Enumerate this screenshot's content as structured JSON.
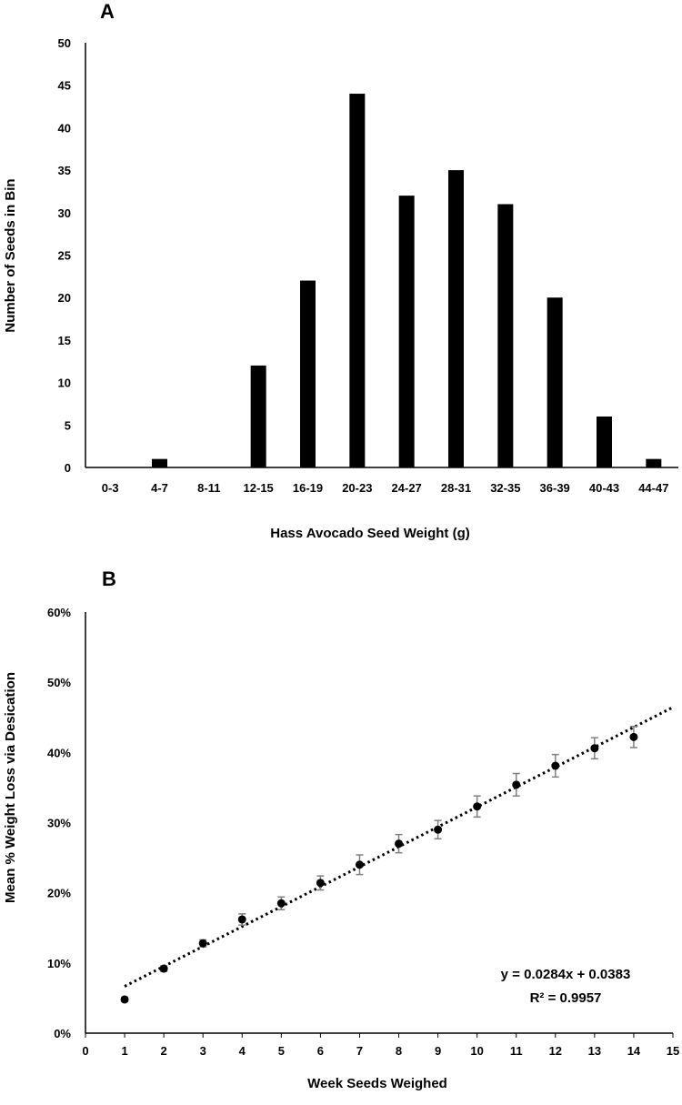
{
  "chart_data": [
    {
      "panel_label": "A",
      "type": "bar",
      "title": "",
      "xlabel": "Hass Avocado Seed Weight (g)",
      "ylabel": "Number of Seeds in Bin",
      "categories": [
        "0-3",
        "4-7",
        "8-11",
        "12-15",
        "16-19",
        "20-23",
        "24-27",
        "28-31",
        "32-35",
        "36-39",
        "40-43",
        "44-47"
      ],
      "values": [
        0,
        1,
        0,
        12,
        22,
        44,
        32,
        35,
        31,
        20,
        6,
        1
      ],
      "ylim": [
        0,
        50
      ],
      "yticks": [
        0,
        5,
        10,
        15,
        20,
        25,
        30,
        35,
        40,
        45,
        50
      ],
      "grid": false,
      "color": "#000000"
    },
    {
      "panel_label": "B",
      "type": "scatter",
      "title": "",
      "xlabel": "Week Seeds Weighed",
      "ylabel": "Mean % Weight Loss via Desication",
      "x": [
        1,
        2,
        3,
        4,
        5,
        6,
        7,
        8,
        9,
        10,
        11,
        12,
        13,
        14
      ],
      "y": [
        0.048,
        0.092,
        0.128,
        0.162,
        0.185,
        0.214,
        0.24,
        0.27,
        0.29,
        0.323,
        0.354,
        0.381,
        0.406,
        0.422
      ],
      "error": [
        0.003,
        0.004,
        0.005,
        0.008,
        0.009,
        0.01,
        0.014,
        0.013,
        0.013,
        0.015,
        0.016,
        0.016,
        0.015,
        0.015
      ],
      "xlim": [
        0,
        15
      ],
      "ylim": [
        0,
        0.6
      ],
      "xticks": [
        "0",
        "1",
        "2",
        "3",
        "4",
        "5",
        "6",
        "7",
        "8",
        "9",
        "10",
        "11",
        "12",
        "13",
        "14",
        "15"
      ],
      "yticks": [
        "0%",
        "10%",
        "20%",
        "30%",
        "40%",
        "50%",
        "60%"
      ],
      "trendline": {
        "slope": 0.0284,
        "intercept": 0.0383,
        "x_start": 1,
        "x_end": 15
      },
      "equation": "y = 0.0284x + 0.0383",
      "r_squared": "R² = 0.9957",
      "legend": "bottom-right",
      "grid": false,
      "marker_color": "#000000",
      "error_color": "#7f7f7f"
    }
  ]
}
